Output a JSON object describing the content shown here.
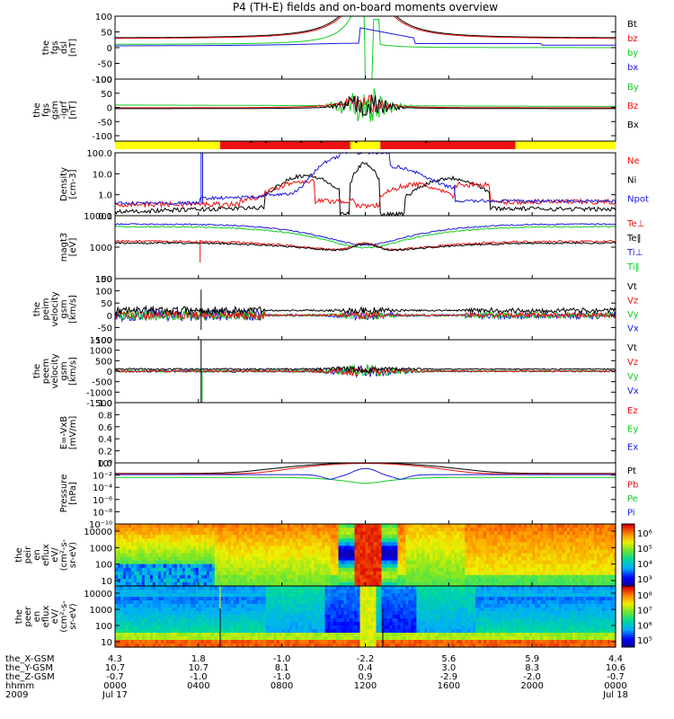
{
  "title": "P4 (TH-E) fields and on-board moments overview",
  "colors": {
    "black": "#000000",
    "red": "#e8110f",
    "green": "#11cc22",
    "blue": "#1a1ae0",
    "yellow": "#ffff00",
    "bar_red": "#ee1111"
  },
  "chart_data": [
    {
      "type": "line",
      "panel": "fgs_dsl",
      "ylabel": [
        "the",
        "fgs",
        "dsl",
        "[nT]"
      ],
      "yticks": [
        "100",
        "50",
        "0",
        "-50",
        "-100"
      ],
      "ylim": [
        -100,
        100
      ],
      "legend": [
        {
          "label": "Bt",
          "color": "black"
        },
        {
          "label": "bz",
          "color": "red"
        },
        {
          "label": "by",
          "color": "green"
        },
        {
          "label": "bx",
          "color": "blue"
        }
      ]
    },
    {
      "type": "line",
      "panel": "fgs_gsm_igrf",
      "ylabel": [
        "the",
        "fgs",
        "gsm",
        "-igrf",
        "[nT]"
      ],
      "yticks": [
        "100",
        "50",
        "0",
        "-50",
        "-100"
      ],
      "ylim": [
        -120,
        100
      ],
      "legend": [
        {
          "label": "By",
          "color": "green"
        },
        {
          "label": "Bz",
          "color": "red"
        },
        {
          "label": "Bx",
          "color": "black"
        }
      ]
    },
    {
      "type": "bar",
      "panel": "mode_bar",
      "segments": [
        {
          "from": 0,
          "to": 0.21,
          "color": "yellow"
        },
        {
          "from": 0.21,
          "to": 0.47,
          "color": "bar_red"
        },
        {
          "from": 0.47,
          "to": 0.53,
          "color": "yellow"
        },
        {
          "from": 0.53,
          "to": 0.8,
          "color": "bar_red"
        },
        {
          "from": 0.8,
          "to": 1.0,
          "color": "yellow"
        }
      ]
    },
    {
      "type": "line",
      "panel": "density",
      "scale": "log",
      "ylabel": [
        "Density",
        "[cm-3]"
      ],
      "yticks": [
        "100.0",
        "10.0",
        "1.0",
        "0.1"
      ],
      "ylim": [
        0.1,
        100
      ],
      "legend": [
        {
          "label": "Ne",
          "color": "red"
        },
        {
          "label": "Ni",
          "color": "black"
        },
        {
          "label": "Npot",
          "color": "blue"
        }
      ]
    },
    {
      "type": "line",
      "panel": "magt3",
      "scale": "log",
      "ylabel": [
        "magt3",
        "[eV]"
      ],
      "yticks": [
        "10000",
        "1000",
        "100"
      ],
      "ylim": [
        10,
        10000
      ],
      "legend": [
        {
          "label": "Te⊥",
          "color": "red"
        },
        {
          "label": "Te‖",
          "color": "black"
        },
        {
          "label": "Ti⊥",
          "color": "blue"
        },
        {
          "label": "Ti‖",
          "color": "green"
        }
      ]
    },
    {
      "type": "line",
      "panel": "peim_velocity",
      "ylabel": [
        "the",
        "peim",
        "velocity",
        "gsm",
        "[km/s]"
      ],
      "yticks": [
        "150",
        "100",
        "50",
        "0",
        "-50",
        "-100"
      ],
      "ylim": [
        -100,
        150
      ],
      "legend": [
        {
          "label": "Vt",
          "color": "black"
        },
        {
          "label": "Vz",
          "color": "red"
        },
        {
          "label": "Vy",
          "color": "green"
        },
        {
          "label": "Vx",
          "color": "blue"
        }
      ]
    },
    {
      "type": "line",
      "panel": "peem_velocity",
      "ylabel": [
        "the",
        "peem",
        "velocity",
        "gsm",
        "[km/s]"
      ],
      "yticks": [
        "1500",
        "1000",
        "500",
        "0",
        "-500",
        "-1000",
        "-1500"
      ],
      "ylim": [
        -1500,
        1500
      ],
      "legend": [
        {
          "label": "Vt",
          "color": "black"
        },
        {
          "label": "Vz",
          "color": "red"
        },
        {
          "label": "Vy",
          "color": "green"
        },
        {
          "label": "Vx",
          "color": "blue"
        }
      ]
    },
    {
      "type": "line",
      "panel": "efield",
      "ylabel": [
        "E=-VxB",
        "[mV/m]"
      ],
      "yticks": [
        "1.0",
        "0.8",
        "0.6",
        "0.4",
        "0.2",
        "0.0"
      ],
      "ylim": [
        0,
        1
      ],
      "legend": [
        {
          "label": "Ez",
          "color": "red"
        },
        {
          "label": "Ey",
          "color": "green"
        },
        {
          "label": "Ex",
          "color": "blue"
        }
      ]
    },
    {
      "type": "line",
      "panel": "pressure",
      "scale": "log",
      "ylabel": [
        "Pressure",
        "[nPa]"
      ],
      "yticks": [
        "10⁰",
        "10⁻²",
        "10⁻⁴",
        "10⁻⁶",
        "10⁻⁸",
        "10⁻¹⁰"
      ],
      "ylim": [
        1e-10,
        1
      ],
      "legend": [
        {
          "label": "Pt",
          "color": "black"
        },
        {
          "label": "Pb",
          "color": "red"
        },
        {
          "label": "Pe",
          "color": "green"
        },
        {
          "label": "Pi",
          "color": "blue"
        }
      ]
    },
    {
      "type": "heatmap",
      "panel": "peir_eflux",
      "scale": "log",
      "ylabel": [
        "the",
        "peir",
        "en",
        "eflux",
        "eV/",
        "(cm²-s-",
        "sr-eV)"
      ],
      "yticks": [
        "10000",
        "1000",
        "100",
        "10"
      ],
      "colorbar_ticks": [
        "10⁶",
        "10⁵",
        "10⁴",
        "10³"
      ]
    },
    {
      "type": "heatmap",
      "panel": "peer_eflux",
      "scale": "log",
      "ylabel": [
        "the",
        "peer",
        "en",
        "eflux",
        "eV/",
        "(cm²-s-",
        "sr-eV)"
      ],
      "yticks": [
        "10000",
        "1000",
        "100",
        "10"
      ],
      "colorbar_ticks": [
        "10⁸",
        "10⁷",
        "10⁶",
        "10⁵"
      ]
    }
  ],
  "ephemeris": {
    "labels": [
      "the_X-GSM",
      "the_Y-GSM",
      "the_Z-GSM",
      "hhmm",
      "2009"
    ],
    "columns": [
      {
        "x": "4.3",
        "y": "10.7",
        "z": "-0.7",
        "hhmm": "0000",
        "date": "Jul 17"
      },
      {
        "x": "1.8",
        "y": "10.7",
        "z": "-1.0",
        "hhmm": "0400",
        "date": ""
      },
      {
        "x": "-1.0",
        "y": "8.1",
        "z": "-1.0",
        "hhmm": "0800",
        "date": ""
      },
      {
        "x": "-2.2",
        "y": "0.4",
        "z": "0.9",
        "hhmm": "1200",
        "date": ""
      },
      {
        "x": "5.6",
        "y": "3.0",
        "z": "-2.9",
        "hhmm": "1600",
        "date": ""
      },
      {
        "x": "5.9",
        "y": "8.3",
        "z": "-2.0",
        "hhmm": "2000",
        "date": ""
      },
      {
        "x": "4.4",
        "y": "10.6",
        "z": "-0.7",
        "hhmm": "0000",
        "date": "Jul 18"
      }
    ]
  }
}
